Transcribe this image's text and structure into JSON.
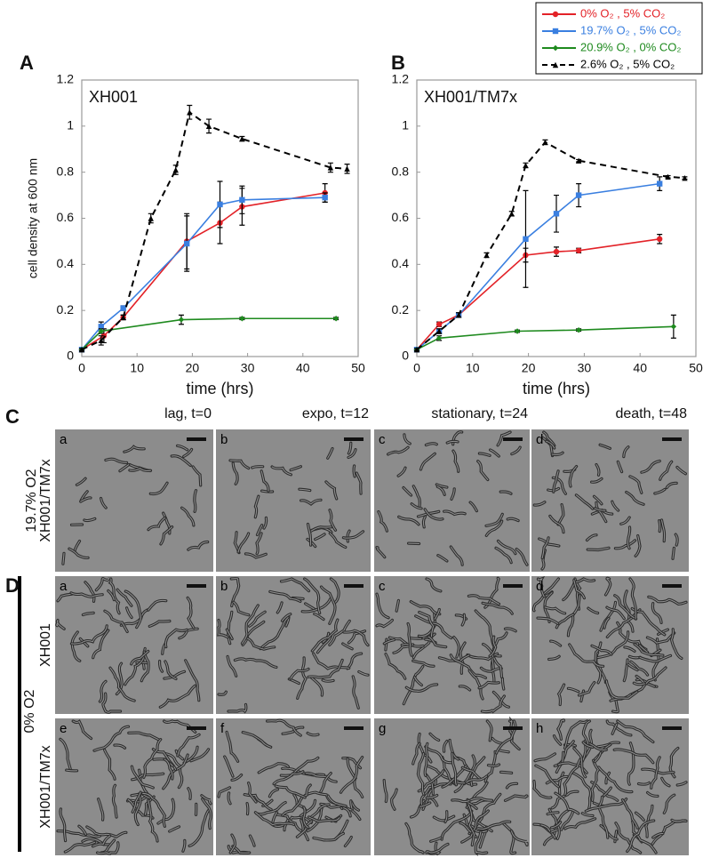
{
  "chart_data": [
    {
      "type": "line",
      "panel": "A",
      "title": "XH001",
      "xlabel": "time (hrs)",
      "ylabel": "cell density at 600 nm",
      "xlim": [
        0,
        50
      ],
      "xticks": [
        0,
        10,
        20,
        30,
        40,
        50
      ],
      "ylim": [
        0,
        1.2
      ],
      "yticks": [
        0,
        0.2,
        0.4,
        0.6,
        0.8,
        1,
        1.2
      ],
      "series": [
        {
          "name": "0% O₂ ,  5% CO₂",
          "color": "#e32228",
          "marker": "circle",
          "x": [
            0,
            4,
            7.5,
            19,
            25,
            29,
            44
          ],
          "values": [
            0.03,
            0.09,
            0.17,
            0.5,
            0.58,
            0.65,
            0.71
          ],
          "errors": [
            0.005,
            0.03,
            0.01,
            0.12,
            0.09,
            0.08,
            0.04
          ]
        },
        {
          "name": "19.7% O₂ , 5% CO₂",
          "color": "#3a7fe0",
          "marker": "square",
          "x": [
            0,
            3.5,
            7.5,
            19,
            25,
            29,
            44
          ],
          "values": [
            0.03,
            0.13,
            0.21,
            0.49,
            0.66,
            0.68,
            0.69
          ],
          "errors": [
            0.005,
            0.02,
            0.01,
            0.12,
            0.1,
            0.06,
            0.02
          ]
        },
        {
          "name": "20.9% O₂ , 0% CO₂",
          "color": "#1e8a1e",
          "marker": "diamond",
          "x": [
            0,
            3.5,
            18,
            29,
            46
          ],
          "values": [
            0.03,
            0.11,
            0.16,
            0.165,
            0.165
          ],
          "errors": [
            0.005,
            0.01,
            0.02,
            0.005,
            0.005
          ]
        },
        {
          "name": "2.6% O₂ , 5% CO₂",
          "color": "#000000",
          "marker": "triangle",
          "dashed": true,
          "x": [
            0,
            3.5,
            7.5,
            12.5,
            17,
            19.5,
            23,
            29,
            45,
            48
          ],
          "values": [
            0.03,
            0.07,
            0.17,
            0.6,
            0.81,
            1.06,
            1,
            0.945,
            0.82,
            0.815
          ],
          "errors": [
            0.005,
            0.02,
            0.01,
            0.02,
            0.02,
            0.03,
            0.03,
            0.01,
            0.02,
            0.02
          ]
        }
      ]
    },
    {
      "type": "line",
      "panel": "B",
      "title": "XH001/TM7x",
      "xlabel": "time (hrs)",
      "xlim": [
        0,
        50
      ],
      "xticks": [
        0,
        10,
        20,
        30,
        40,
        50
      ],
      "ylim": [
        0,
        1.2
      ],
      "yticks": [
        0,
        0.2,
        0.4,
        0.6,
        0.8,
        1,
        1.2
      ],
      "series": [
        {
          "color": "#e32228",
          "marker": "circle",
          "x": [
            0,
            4,
            7.5,
            19.5,
            25,
            29,
            43.5
          ],
          "values": [
            0.03,
            0.14,
            0.18,
            0.44,
            0.455,
            0.46,
            0.51
          ],
          "errors": [
            0.005,
            0.01,
            0.01,
            0.03,
            0.02,
            0.01,
            0.02
          ]
        },
        {
          "color": "#3a7fe0",
          "marker": "square",
          "x": [
            0,
            4,
            7.5,
            19.5,
            25,
            29,
            43.5
          ],
          "values": [
            0.03,
            0.11,
            0.18,
            0.51,
            0.62,
            0.7,
            0.75
          ],
          "errors": [
            0.005,
            0.01,
            0.01,
            0.21,
            0.08,
            0.05,
            0.03
          ]
        },
        {
          "color": "#1e8a1e",
          "marker": "diamond",
          "x": [
            0,
            4,
            18,
            29,
            46
          ],
          "values": [
            0.03,
            0.08,
            0.11,
            0.115,
            0.13
          ],
          "errors": [
            0.005,
            0.01,
            0.005,
            0.005,
            0.05
          ]
        },
        {
          "color": "#000000",
          "marker": "triangle",
          "dashed": true,
          "x": [
            0,
            4,
            7.5,
            12.5,
            17,
            19.5,
            23,
            29,
            45,
            48
          ],
          "values": [
            0.03,
            0.11,
            0.18,
            0.44,
            0.62,
            0.83,
            0.93,
            0.85,
            0.78,
            0.775
          ],
          "errors": [
            0.005,
            0.01,
            0.01,
            0.01,
            0.01,
            0.01,
            0.01,
            0.005,
            0.005,
            0.005
          ]
        }
      ]
    }
  ],
  "micrographs": {
    "panel_c": "C",
    "panel_d": "D",
    "group_label": "0% O2",
    "columns": [
      "lag, t=0",
      "expo, t=12",
      "stationary, t=24",
      "death, t=48"
    ],
    "rows": [
      {
        "labels": [
          "19.7% O2",
          "XH001/TM7x"
        ],
        "panels": [
          "a",
          "b",
          "c",
          "d"
        ]
      },
      {
        "labels": [
          "XH001"
        ],
        "panels": [
          "a",
          "b",
          "c",
          "d"
        ]
      },
      {
        "labels": [
          "XH001/TM7x"
        ],
        "panels": [
          "e",
          "f",
          "g",
          "h"
        ]
      }
    ]
  }
}
